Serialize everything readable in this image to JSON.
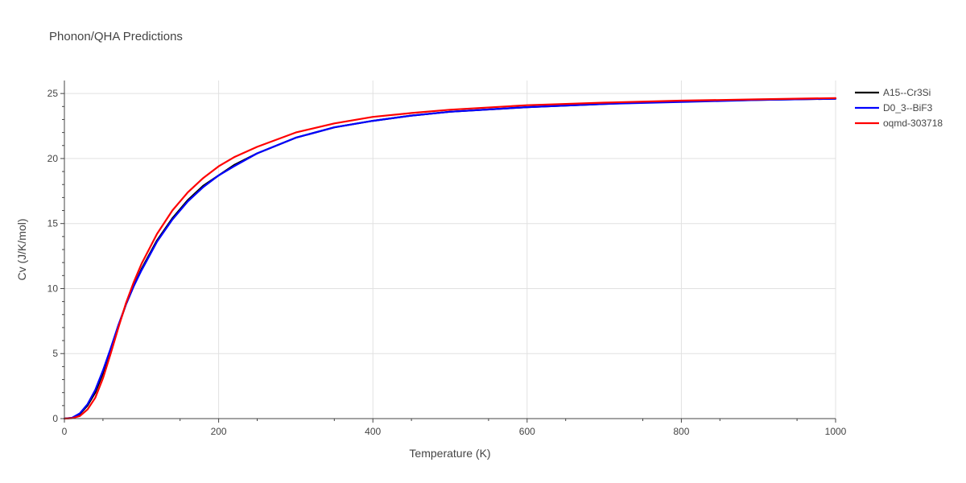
{
  "chart_data": {
    "type": "line",
    "title": "Phonon/QHA Predictions",
    "xlabel": "Temperature (K)",
    "ylabel": "Cv (J/K/mol)",
    "xlim": [
      0,
      1000
    ],
    "ylim": [
      0,
      26
    ],
    "x_ticks": [
      0,
      200,
      400,
      600,
      800,
      1000
    ],
    "y_ticks": [
      0,
      5,
      10,
      15,
      20,
      25
    ],
    "grid": true,
    "legend_position": "top-right",
    "series": [
      {
        "name": "A15--Cr3Si",
        "color": "#000000",
        "x": [
          0,
          10,
          20,
          30,
          40,
          50,
          60,
          70,
          80,
          90,
          100,
          120,
          140,
          160,
          180,
          200,
          220,
          250,
          300,
          350,
          400,
          450,
          500,
          600,
          700,
          800,
          900,
          1000
        ],
        "y": [
          0,
          0.05,
          0.35,
          1.0,
          2.0,
          3.5,
          5.3,
          7.1,
          8.8,
          10.2,
          11.5,
          13.7,
          15.4,
          16.8,
          17.9,
          18.7,
          19.5,
          20.4,
          21.6,
          22.4,
          22.9,
          23.3,
          23.6,
          23.95,
          24.2,
          24.4,
          24.5,
          24.6
        ]
      },
      {
        "name": "D0_3--BiF3",
        "color": "#0000ff",
        "x": [
          0,
          10,
          20,
          30,
          40,
          50,
          60,
          70,
          80,
          90,
          100,
          120,
          140,
          160,
          180,
          200,
          220,
          250,
          300,
          350,
          400,
          450,
          500,
          600,
          700,
          800,
          900,
          1000
        ],
        "y": [
          0,
          0.06,
          0.4,
          1.1,
          2.2,
          3.7,
          5.4,
          7.2,
          8.8,
          10.2,
          11.4,
          13.6,
          15.3,
          16.7,
          17.8,
          18.7,
          19.4,
          20.4,
          21.6,
          22.4,
          22.9,
          23.3,
          23.6,
          23.95,
          24.2,
          24.35,
          24.5,
          24.6
        ]
      },
      {
        "name": "oqmd-303718",
        "color": "#ff0000",
        "x": [
          0,
          10,
          20,
          30,
          40,
          50,
          60,
          70,
          80,
          90,
          100,
          120,
          140,
          160,
          180,
          200,
          220,
          250,
          300,
          350,
          400,
          450,
          500,
          600,
          700,
          800,
          900,
          1000
        ],
        "y": [
          0,
          0.03,
          0.2,
          0.7,
          1.6,
          3.1,
          5.0,
          7.0,
          8.9,
          10.5,
          11.9,
          14.2,
          16.0,
          17.4,
          18.5,
          19.4,
          20.1,
          20.9,
          22.0,
          22.7,
          23.2,
          23.5,
          23.75,
          24.1,
          24.3,
          24.45,
          24.55,
          24.65
        ]
      }
    ]
  }
}
